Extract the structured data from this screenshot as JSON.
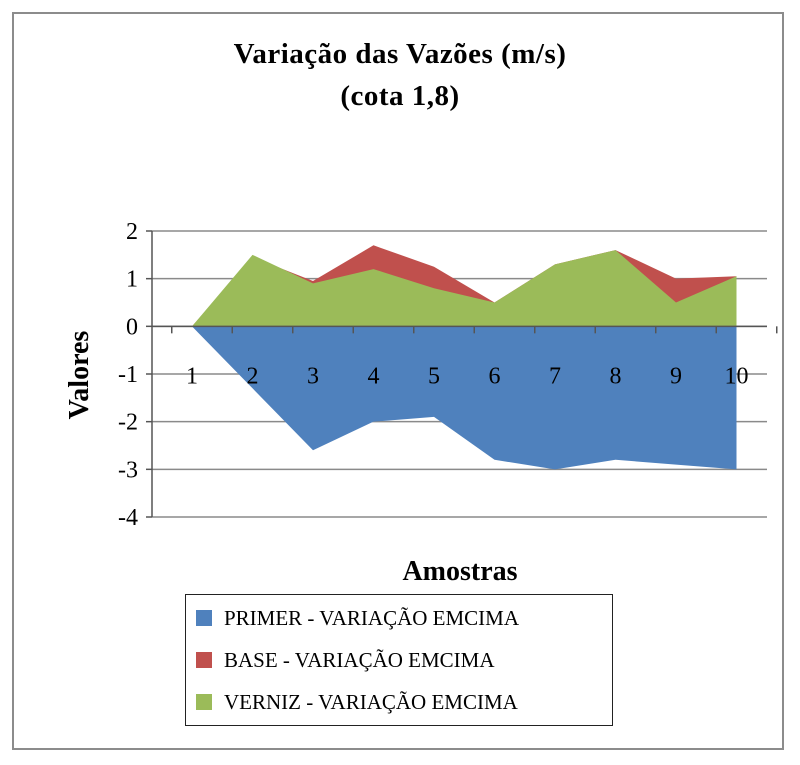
{
  "chart_data": {
    "type": "area",
    "title": "Variação das Vazões (m/s)",
    "subtitle": "(cota 1,8)",
    "xlabel": "Amostras",
    "ylabel": "Valores",
    "categories": [
      "1",
      "2",
      "3",
      "4",
      "5",
      "6",
      "7",
      "8",
      "9",
      "10"
    ],
    "yticks": [
      "2",
      "1",
      "0",
      "-1",
      "-2",
      "-3",
      "-4"
    ],
    "ylim": [
      -4,
      2
    ],
    "grid": true,
    "legend_position": "bottom",
    "series": [
      {
        "name": "PRIMER - VARIAÇÃO EMCIMA",
        "color": "#4f81bd",
        "values": [
          0,
          -1.3,
          -2.6,
          -2.0,
          -1.9,
          -2.8,
          -3.0,
          -2.8,
          -2.9,
          -3.0
        ]
      },
      {
        "name": "BASE - VARIAÇÃO EMCIMA",
        "color": "#c0504d",
        "values": [
          0,
          1.45,
          0.95,
          1.7,
          1.25,
          0.5,
          1.3,
          1.6,
          1.0,
          1.05
        ]
      },
      {
        "name": "VERNIZ - VARIAÇÃO EMCIMA",
        "color": "#9bbb59",
        "values": [
          0,
          1.5,
          0.9,
          1.2,
          0.8,
          0.5,
          1.3,
          1.6,
          0.5,
          1.05
        ]
      }
    ]
  }
}
